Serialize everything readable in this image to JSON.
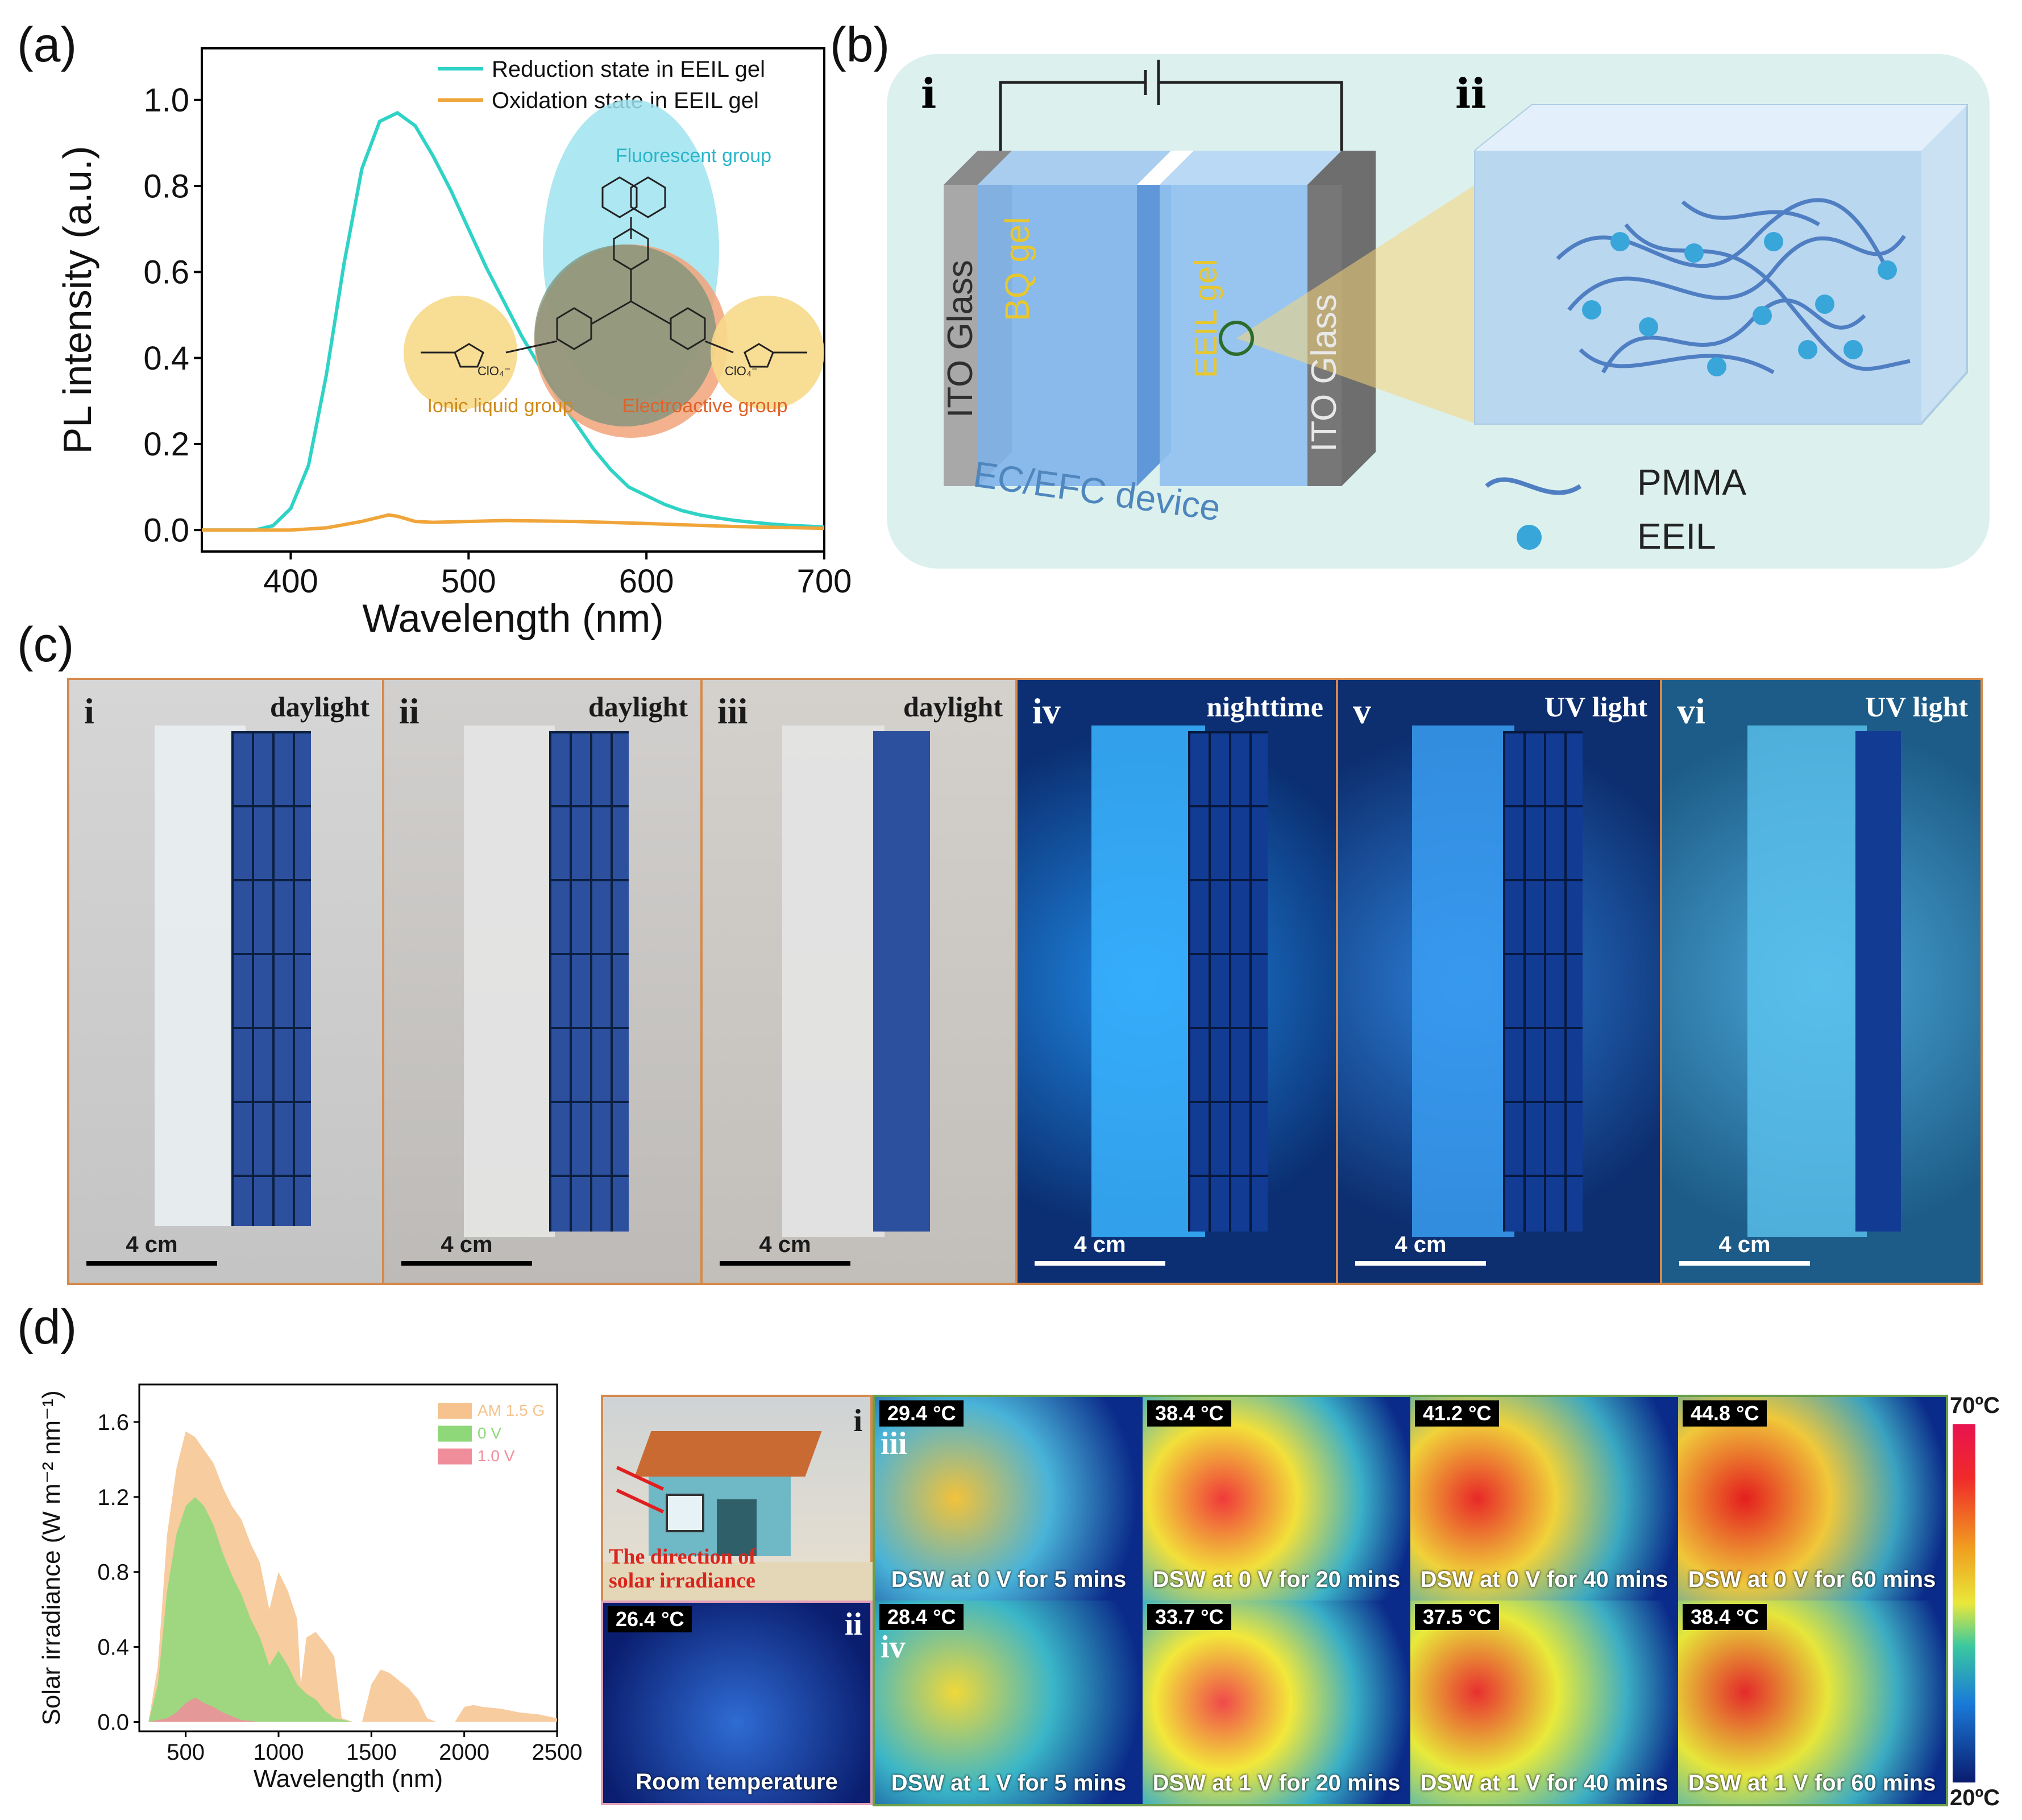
{
  "panel_labels": {
    "a": "(a)",
    "b": "(b)",
    "c": "(c)",
    "d": "(d)"
  },
  "chart_data": [
    {
      "type": "line",
      "panel": "a",
      "xlabel": "Wavelength (nm)",
      "ylabel": "PL intensity (a.u.)",
      "xlim": [
        350,
        700
      ],
      "ylim": [
        -0.05,
        1.12
      ],
      "xticks": [
        400,
        500,
        600,
        700
      ],
      "yticks": [
        0.0,
        0.2,
        0.4,
        0.6,
        0.8,
        1.0
      ],
      "ytick_labels": [
        "0.0",
        "0.2",
        "0.4",
        "0.6",
        "0.8",
        "1.0"
      ],
      "series": [
        {
          "name": "Reduction state in EEIL gel",
          "color": "#2fd3c6",
          "x": [
            350,
            380,
            390,
            400,
            410,
            420,
            430,
            440,
            450,
            460,
            470,
            480,
            490,
            500,
            510,
            520,
            530,
            540,
            550,
            560,
            570,
            580,
            590,
            600,
            610,
            620,
            630,
            640,
            650,
            660,
            670,
            680,
            690,
            700
          ],
          "y": [
            0.0,
            0.0,
            0.01,
            0.05,
            0.15,
            0.36,
            0.62,
            0.84,
            0.95,
            0.97,
            0.94,
            0.87,
            0.79,
            0.7,
            0.61,
            0.53,
            0.45,
            0.38,
            0.31,
            0.25,
            0.19,
            0.14,
            0.1,
            0.08,
            0.06,
            0.045,
            0.035,
            0.028,
            0.022,
            0.018,
            0.014,
            0.011,
            0.009,
            0.007
          ]
        },
        {
          "name": "Oxidation state in EEIL gel",
          "color": "#f0a53a",
          "x": [
            350,
            400,
            420,
            440,
            450,
            455,
            460,
            470,
            480,
            500,
            520,
            560,
            600,
            650,
            700
          ],
          "y": [
            0.0,
            0.0,
            0.005,
            0.02,
            0.03,
            0.035,
            0.032,
            0.02,
            0.018,
            0.02,
            0.022,
            0.02,
            0.015,
            0.008,
            0.004
          ]
        }
      ],
      "annotations": {
        "fluorescent": "Fluorescent group",
        "ionic": "Ionic liquid group",
        "electroactive": "Electroactive group",
        "anion_left": "ClO₄⁻",
        "anion_right": "ClO₄⁻"
      }
    },
    {
      "type": "area",
      "panel": "d",
      "xlabel": "Wavelength (nm)",
      "ylabel": "Solar irradiance (W m⁻² nm⁻¹)",
      "xlim": [
        250,
        2500
      ],
      "ylim": [
        -0.05,
        1.8
      ],
      "xticks": [
        500,
        1000,
        1500,
        2000,
        2500
      ],
      "yticks": [
        0.0,
        0.4,
        0.8,
        1.2,
        1.6
      ],
      "ytick_labels": [
        "0.0",
        "0.4",
        "0.8",
        "1.2",
        "1.6"
      ],
      "series": [
        {
          "name": "AM 1.5 G",
          "color": "#f6c38e",
          "x": [
            300,
            350,
            400,
            450,
            500,
            550,
            600,
            650,
            700,
            750,
            800,
            850,
            900,
            950,
            1000,
            1050,
            1100,
            1120,
            1150,
            1200,
            1250,
            1300,
            1340,
            1400,
            1450,
            1500,
            1550,
            1600,
            1650,
            1700,
            1750,
            1800,
            1850,
            1950,
            2000,
            2050,
            2100,
            2200,
            2300,
            2400,
            2500
          ],
          "y": [
            0.0,
            0.3,
            1.0,
            1.35,
            1.55,
            1.52,
            1.45,
            1.38,
            1.25,
            1.15,
            1.08,
            0.95,
            0.85,
            0.6,
            0.8,
            0.7,
            0.55,
            0.2,
            0.45,
            0.48,
            0.42,
            0.35,
            0.02,
            0.0,
            0.0,
            0.2,
            0.28,
            0.26,
            0.22,
            0.18,
            0.12,
            0.02,
            0.0,
            0.0,
            0.08,
            0.09,
            0.08,
            0.07,
            0.05,
            0.04,
            0.02
          ]
        },
        {
          "name": "0 V",
          "color": "#8fd87a",
          "x": [
            300,
            350,
            400,
            450,
            500,
            550,
            600,
            650,
            700,
            750,
            800,
            850,
            900,
            950,
            1000,
            1050,
            1100,
            1150,
            1200,
            1250,
            1300,
            1400
          ],
          "y": [
            0.0,
            0.2,
            0.7,
            1.0,
            1.15,
            1.2,
            1.15,
            1.05,
            0.9,
            0.78,
            0.68,
            0.55,
            0.45,
            0.3,
            0.38,
            0.3,
            0.2,
            0.15,
            0.12,
            0.06,
            0.02,
            0.0
          ]
        },
        {
          "name": "1.0 V",
          "color": "#f08d9b",
          "x": [
            300,
            400,
            450,
            500,
            550,
            600,
            650,
            700,
            750,
            800,
            900
          ],
          "y": [
            0.0,
            0.02,
            0.05,
            0.1,
            0.13,
            0.1,
            0.08,
            0.05,
            0.03,
            0.01,
            0.0
          ]
        }
      ]
    }
  ],
  "panel_b": {
    "roman_i": "i",
    "roman_ii": "ii",
    "ito_left": "ITO Glass",
    "bq_gel": "BQ gel",
    "eeil_gel": "EEIL gel",
    "ito_right": "ITO Glass",
    "device": "EC/EFC device",
    "legend_pmma": "PMMA",
    "legend_eeil": "EEIL"
  },
  "panel_c": {
    "photos": [
      {
        "roman": "i",
        "condition": "daylight",
        "scale": "4 cm"
      },
      {
        "roman": "ii",
        "condition": "daylight",
        "scale": "4 cm"
      },
      {
        "roman": "iii",
        "condition": "daylight",
        "scale": "4 cm"
      },
      {
        "roman": "iv",
        "condition": "nighttime",
        "scale": "4 cm"
      },
      {
        "roman": "v",
        "condition": "UV light",
        "scale": "4 cm"
      },
      {
        "roman": "vi",
        "condition": "UV light",
        "scale": "4 cm"
      }
    ]
  },
  "panel_d": {
    "house_roman": "i",
    "house_caption_1": "The direction of",
    "house_caption_2": "solar irradiance",
    "room_roman": "ii",
    "room_temp": "26.4 °C",
    "room_caption": "Room temperature",
    "row_iii": "iii",
    "row_iv": "iv",
    "top_row": [
      {
        "temp": "29.4 °C",
        "caption": "DSW at 0 V for 5 mins"
      },
      {
        "temp": "38.4 °C",
        "caption": "DSW at 0 V for 20 mins"
      },
      {
        "temp": "41.2 °C",
        "caption": "DSW at 0 V for 40 mins"
      },
      {
        "temp": "44.8 °C",
        "caption": "DSW at 0 V for 60 mins"
      }
    ],
    "bottom_row": [
      {
        "temp": "28.4 °C",
        "caption": "DSW at 1 V for 5 mins"
      },
      {
        "temp": "33.7 °C",
        "caption": "DSW at 1 V for 20 mins"
      },
      {
        "temp": "37.5 °C",
        "caption": "DSW at 1 V for 40 mins"
      },
      {
        "temp": "38.4 °C",
        "caption": "DSW at 1 V for 60 mins"
      }
    ],
    "colorbar_max": "70ºC",
    "colorbar_min": "20ºC"
  }
}
